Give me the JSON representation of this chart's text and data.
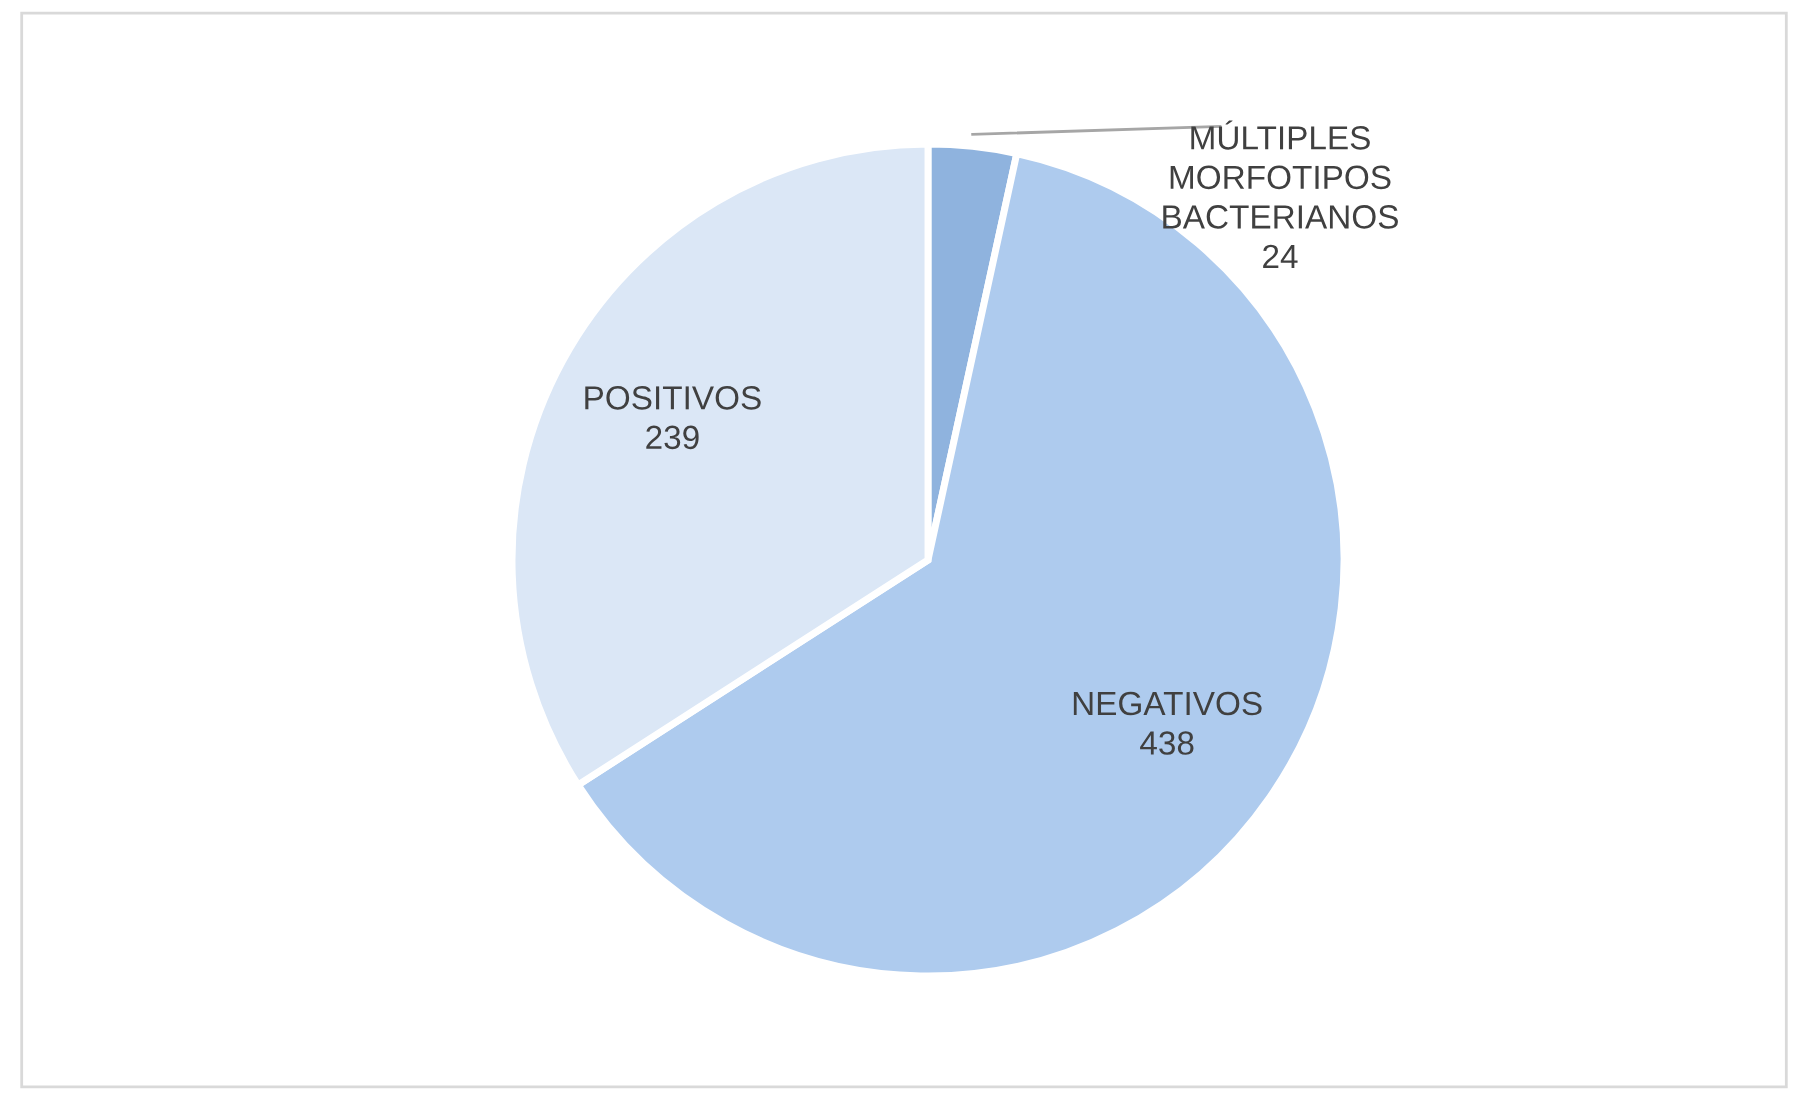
{
  "chart_data": {
    "type": "pie",
    "categories": [
      "MÚLTIPLES\nMORFOTIPOS\nBACTERIANOS",
      "NEGATIVOS",
      "POSITIVOS"
    ],
    "values": [
      24,
      438,
      239
    ],
    "colors": [
      "#8fb3de",
      "#aecbee",
      "#dbe7f6"
    ],
    "data_labels": true,
    "legend": false
  }
}
